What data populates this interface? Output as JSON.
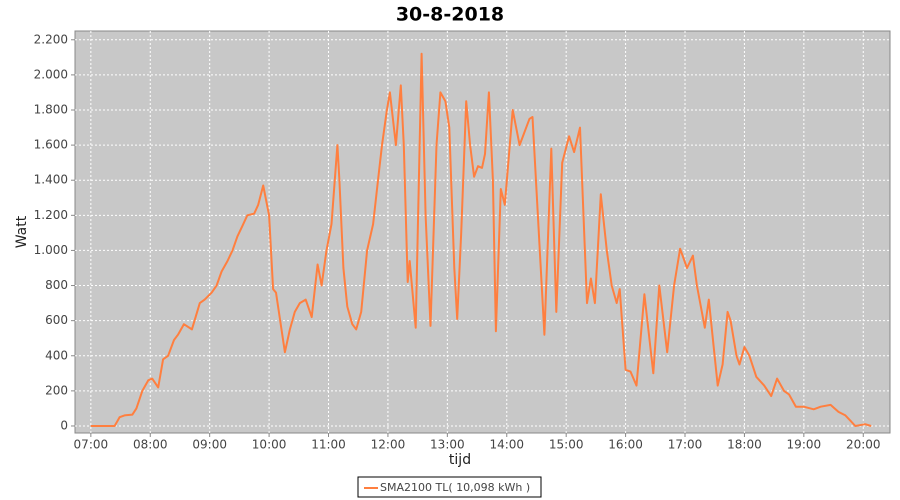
{
  "chart_data": {
    "type": "line",
    "title": "30-8-2018",
    "xlabel": "tijd",
    "ylabel": "Watt",
    "x": [
      "07:00",
      "07:24",
      "07:29",
      "07:34",
      "07:42",
      "07:46",
      "07:52",
      "07:58",
      "08:02",
      "08:08",
      "08:13",
      "08:18",
      "08:24",
      "08:28",
      "08:34",
      "08:42",
      "08:50",
      "08:55",
      "09:02",
      "09:07",
      "09:12",
      "09:18",
      "09:23",
      "09:28",
      "09:33",
      "09:38",
      "09:45",
      "09:49",
      "09:54",
      "10:00",
      "10:04",
      "10:07",
      "10:16",
      "10:21",
      "10:26",
      "10:31",
      "10:37",
      "10:43",
      "10:49",
      "10:53",
      "10:58",
      "11:03",
      "11:09",
      "11:11",
      "11:15",
      "11:19",
      "11:24",
      "11:28",
      "11:33",
      "11:39",
      "11:45",
      "11:50",
      "11:54",
      "11:59",
      "12:02",
      "12:08",
      "12:13",
      "12:16",
      "12:20",
      "12:22",
      "12:28",
      "12:34",
      "12:38",
      "12:43",
      "12:49",
      "12:53",
      "12:58",
      "13:02",
      "13:07",
      "13:10",
      "13:14",
      "13:19",
      "13:23",
      "13:27",
      "13:31",
      "13:35",
      "13:38",
      "13:42",
      "13:46",
      "13:49",
      "13:54",
      "13:58",
      "14:06",
      "14:13",
      "14:23",
      "14:26",
      "14:38",
      "14:45",
      "14:50",
      "14:56",
      "15:03",
      "15:08",
      "15:14",
      "15:21",
      "15:25",
      "15:29",
      "15:35",
      "15:41",
      "15:46",
      "15:51",
      "15:54",
      "16:00",
      "16:05",
      "16:11",
      "16:19",
      "16:28",
      "16:34",
      "16:42",
      "16:49",
      "16:55",
      "17:02",
      "17:08",
      "17:12",
      "17:20",
      "17:24",
      "17:33",
      "17:38",
      "17:43",
      "17:46",
      "17:52",
      "17:55",
      "18:00",
      "18:05",
      "18:12",
      "18:20",
      "18:27",
      "18:33",
      "18:40",
      "18:45",
      "18:52",
      "19:00",
      "19:10",
      "19:17",
      "19:27",
      "19:35",
      "19:42",
      "19:47",
      "19:52",
      "20:02",
      "20:08"
    ],
    "series": [
      {
        "name": "SMA2100 TL( 10,098 kWh )",
        "color": "#ff7f3f",
        "values": [
          0,
          0,
          50,
          60,
          65,
          100,
          200,
          260,
          270,
          220,
          380,
          400,
          490,
          520,
          580,
          550,
          700,
          720,
          760,
          800,
          880,
          940,
          1000,
          1080,
          1140,
          1200,
          1210,
          1260,
          1370,
          1200,
          780,
          760,
          420,
          550,
          650,
          700,
          720,
          620,
          920,
          800,
          1000,
          1150,
          1600,
          1400,
          900,
          680,
          580,
          550,
          650,
          1000,
          1150,
          1400,
          1600,
          1800,
          1900,
          1600,
          1940,
          1600,
          820,
          940,
          560,
          2120,
          1200,
          570,
          1600,
          1900,
          1850,
          1700,
          900,
          610,
          1100,
          1850,
          1600,
          1420,
          1480,
          1470,
          1550,
          1900,
          1400,
          540,
          1350,
          1260,
          1800,
          1600,
          1750,
          1760,
          520,
          1580,
          650,
          1500,
          1650,
          1560,
          1700,
          700,
          840,
          700,
          1320,
          1000,
          800,
          700,
          780,
          320,
          310,
          230,
          750,
          300,
          800,
          420,
          800,
          1010,
          900,
          970,
          800,
          560,
          720,
          230,
          350,
          650,
          600,
          400,
          350,
          450,
          400,
          280,
          230,
          170,
          270,
          200,
          180,
          110,
          110,
          95,
          110,
          120,
          80,
          60,
          30,
          0,
          10,
          0
        ]
      }
    ],
    "xlim": [
      "06:44",
      "20:27"
    ],
    "xticks": [
      "07:00",
      "08:00",
      "09:00",
      "10:00",
      "11:00",
      "12:00",
      "13:00",
      "14:00",
      "15:00",
      "16:00",
      "17:00",
      "18:00",
      "19:00",
      "20:00"
    ],
    "ylim": [
      -40,
      2250
    ],
    "yticks": [
      0,
      200,
      400,
      600,
      800,
      {
        "value": 1000,
        "label": "1.000"
      },
      {
        "value": 1200,
        "label": "1.200"
      },
      {
        "value": 1400,
        "label": "1.400"
      },
      {
        "value": 1600,
        "label": "1.600"
      },
      {
        "value": 1800,
        "label": "1.800"
      },
      {
        "value": 2000,
        "label": "2.000"
      },
      {
        "value": 2200,
        "label": "2.200"
      }
    ],
    "grid": true
  }
}
